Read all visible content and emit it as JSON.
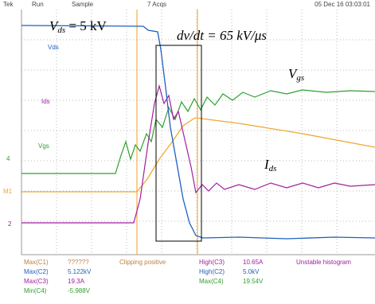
{
  "header": {
    "brand": "Tek",
    "state": "Run",
    "mode": "Sample",
    "acquisitions": "7 Acqs",
    "timestamp": "05 Dec 16 03:03:01"
  },
  "annotations": {
    "vds": {
      "symbol": "V",
      "subscript": "ds",
      "text": " = 5 kV"
    },
    "dvdt": "dv/dt = 65 kV/μs",
    "vgs": {
      "symbol": "V",
      "subscript": "gs"
    },
    "ids": {
      "symbol": "I",
      "subscript": "ds"
    }
  },
  "screen_labels": {
    "vds": "Vds",
    "ids": "Ids",
    "vgs": "Vgs",
    "ch4": "4",
    "m1": "M1",
    "ch2": "2"
  },
  "measurements": [
    {
      "label": "Max(C1)",
      "value": "??????"
    },
    {
      "label": "Max(C2)",
      "value": "5.122kV"
    },
    {
      "label": "Max(C3)",
      "value": "19.3A"
    },
    {
      "label": "Min(C4)",
      "value": "-5.988V"
    }
  ],
  "measurements_right": [
    {
      "label": "High(C3)",
      "value": "10.65A"
    },
    {
      "label": "High(C2)",
      "value": "5.0kV"
    },
    {
      "label": "Max(C4)",
      "value": "19.54V"
    }
  ],
  "status": {
    "clipping": "Clipping positive",
    "histogram": "Unstable histogram"
  }
}
